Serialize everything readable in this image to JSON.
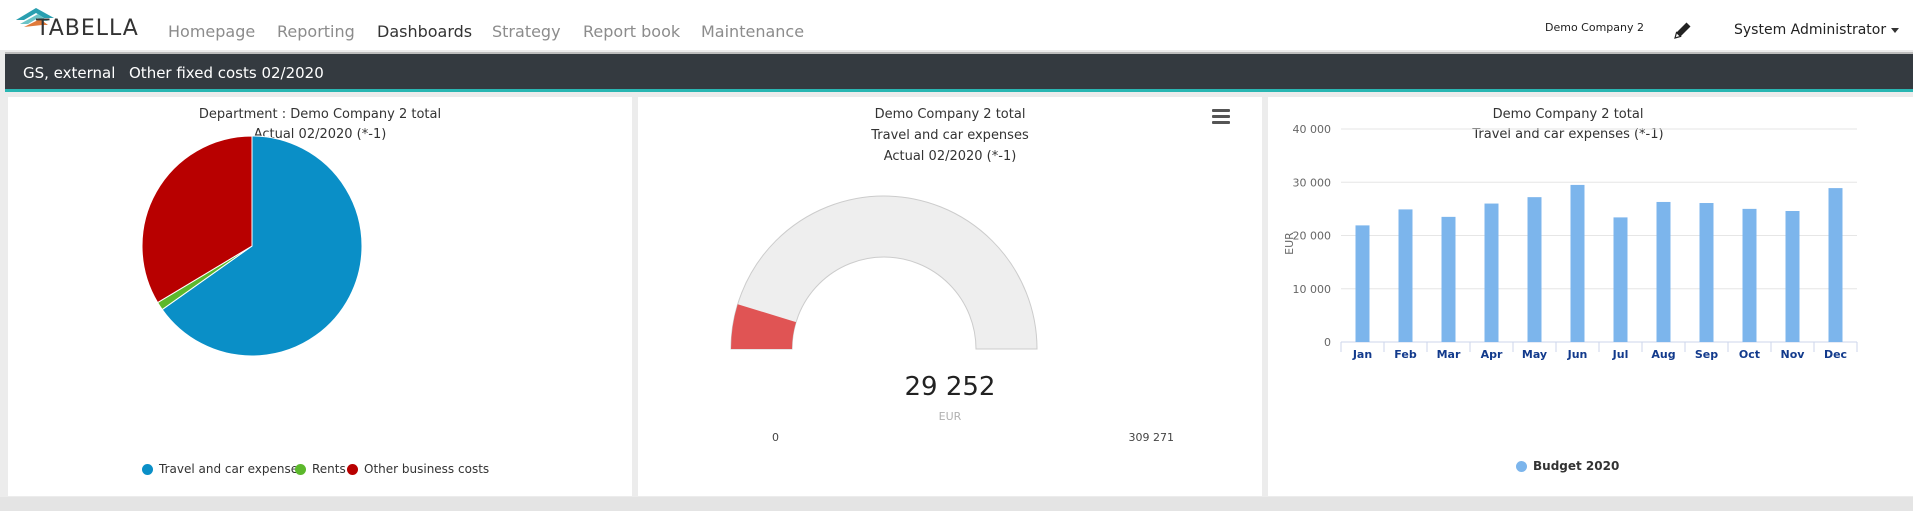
{
  "nav": {
    "logo": "TABELLA",
    "items": [
      {
        "label": "Homepage"
      },
      {
        "label": "Reporting"
      },
      {
        "label": "Dashboards"
      },
      {
        "label": "Strategy"
      },
      {
        "label": "Report book"
      },
      {
        "label": "Maintenance"
      }
    ],
    "active": "Dashboards",
    "company": "Demo Company 2",
    "user": "System Administrator"
  },
  "subbar": {
    "scope": "GS, external",
    "title": "Other fixed costs 02/2020"
  },
  "panels": {
    "pie": {
      "title_line1": "Department : Demo Company 2 total",
      "title_line2": "Actual 02/2020 (*-1)",
      "legend": [
        {
          "label": "Travel and car expenses",
          "color": "#0a8fc7"
        },
        {
          "label": "Rents",
          "color": "#5cb82c"
        },
        {
          "label": "Other business costs",
          "color": "#b80000"
        }
      ]
    },
    "gauge": {
      "title_line1": "Demo Company 2 total",
      "title_line2": "Travel and car expenses",
      "title_line3": "Actual 02/2020 (*-1)",
      "value": "29 252",
      "unit": "EUR",
      "min": "0",
      "max": "309 271",
      "fill_color": "#e05454"
    },
    "bar": {
      "title_line1": "Demo Company 2 total",
      "title_line2": "Travel and car expenses (*-1)",
      "legend": "Budget 2020",
      "bar_color": "#7cb5ec"
    }
  },
  "chart_data": [
    {
      "type": "pie",
      "categories": [
        "Travel and car expenses",
        "Rents",
        "Other business costs"
      ],
      "values": [
        65.2,
        1.2,
        33.6
      ],
      "colors": [
        "#0a8fc7",
        "#5cb82c",
        "#b80000"
      ],
      "title": "Department : Demo Company 2 total",
      "subtitle": "Actual 02/2020 (*-1)"
    },
    {
      "type": "gauge",
      "value": 29252,
      "min": 0,
      "max": 309271,
      "unit": "EUR"
    },
    {
      "type": "bar",
      "categories": [
        "Jan",
        "Feb",
        "Mar",
        "Apr",
        "May",
        "Jun",
        "Jul",
        "Aug",
        "Sep",
        "Oct",
        "Nov",
        "Dec"
      ],
      "series": [
        {
          "name": "Budget 2020",
          "values": [
            21900,
            24900,
            23500,
            26000,
            27200,
            29500,
            23400,
            26300,
            26100,
            25000,
            24600,
            28900
          ]
        }
      ],
      "ylabel": "EUR",
      "ylim": [
        0,
        40000
      ],
      "yticks": [
        "0",
        "10 000",
        "20 000",
        "30 000",
        "40 000"
      ],
      "grid": true,
      "legend_position": "bottom"
    }
  ]
}
